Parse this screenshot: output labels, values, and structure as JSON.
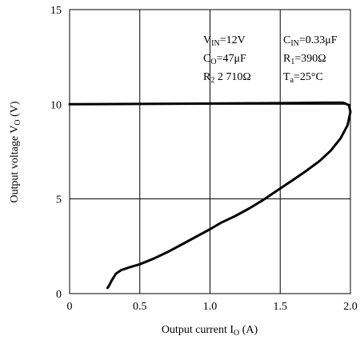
{
  "chart_data": {
    "type": "line",
    "xlabel": "Output current I",
    "xlabel_sub": "O",
    "xlabel_unit": " (A)",
    "ylabel": "Output voltage V",
    "ylabel_sub": "O",
    "ylabel_unit": " (V)",
    "xlim": [
      0,
      2.0
    ],
    "ylim": [
      0,
      15
    ],
    "x_ticks": [
      0,
      0.5,
      1.0,
      1.5,
      2.0
    ],
    "x_tick_labels": [
      "0",
      "0.5",
      "1.0",
      "1.5",
      "2.0"
    ],
    "y_ticks": [
      0,
      5,
      10,
      15
    ],
    "y_tick_labels": [
      "0",
      "5",
      "10",
      "15"
    ],
    "grid": true,
    "line_color": "#000000",
    "annotations": {
      "vin": {
        "main": "V",
        "sub": "IN",
        "rest": "=12V"
      },
      "cin": {
        "main": "C",
        "sub": "IN",
        "rest": "=0.33μF"
      },
      "co": {
        "main": "C",
        "sub": "O",
        "rest": "=47μF"
      },
      "r1": {
        "main": "R",
        "sub": "1",
        "rest": "=390Ω"
      },
      "r2": {
        "main": "R",
        "sub": "2",
        "rest": " 2 710Ω"
      },
      "ta": {
        "main": "T",
        "sub": "a",
        "rest": "=25°C"
      }
    },
    "series": [
      {
        "points": [
          [
            0.0,
            10.0
          ],
          [
            0.5,
            10.02
          ],
          [
            1.0,
            10.04
          ],
          [
            1.5,
            10.06
          ],
          [
            1.8,
            10.08
          ],
          [
            1.95,
            10.08
          ],
          [
            1.99,
            9.95
          ],
          [
            2.0,
            9.6
          ],
          [
            1.98,
            8.9
          ],
          [
            1.93,
            8.2
          ],
          [
            1.86,
            7.55
          ],
          [
            1.78,
            7.0
          ],
          [
            1.68,
            6.45
          ],
          [
            1.58,
            5.95
          ],
          [
            1.48,
            5.45
          ],
          [
            1.38,
            4.95
          ],
          [
            1.28,
            4.5
          ],
          [
            1.18,
            4.1
          ],
          [
            1.08,
            3.75
          ],
          [
            1.0,
            3.4
          ],
          [
            0.9,
            3.0
          ],
          [
            0.8,
            2.6
          ],
          [
            0.7,
            2.2
          ],
          [
            0.6,
            1.85
          ],
          [
            0.5,
            1.55
          ],
          [
            0.43,
            1.4
          ],
          [
            0.37,
            1.25
          ],
          [
            0.33,
            1.05
          ],
          [
            0.3,
            0.7
          ],
          [
            0.28,
            0.4
          ],
          [
            0.27,
            0.3
          ]
        ]
      }
    ]
  }
}
